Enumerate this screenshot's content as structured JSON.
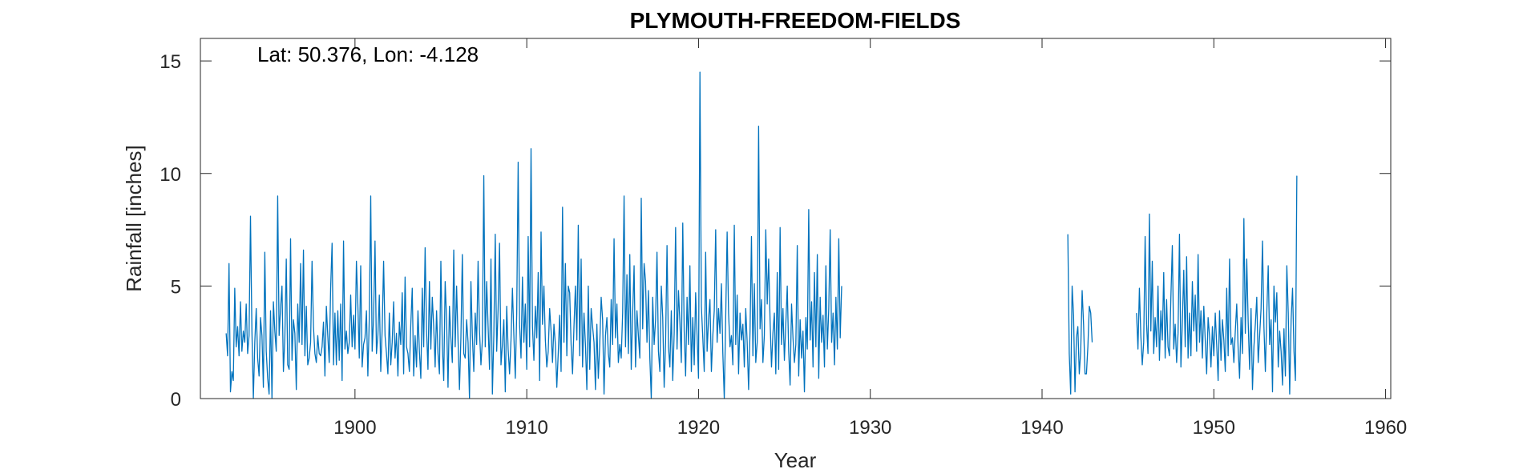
{
  "chart_data": {
    "type": "line",
    "title": "PLYMOUTH-FREEDOM-FIELDS",
    "annotation": "Lat: 50.376, Lon: -4.128",
    "xlabel": "Year",
    "ylabel": "Rainfall [inches]",
    "xlim": [
      1891,
      1960.3
    ],
    "ylim": [
      0,
      16
    ],
    "xticks": [
      1900,
      1910,
      1920,
      1930,
      1940,
      1950,
      1960
    ],
    "yticks": [
      0,
      5,
      10,
      15
    ],
    "grid": false,
    "line_color": "#0072BD",
    "series": [
      {
        "x_start": 1892.5,
        "x_step": 0.08333,
        "y": [
          2.9,
          1.9,
          6.0,
          0.3,
          1.2,
          0.8,
          4.9,
          2.3,
          3.2,
          1.9,
          4.3,
          2.1,
          3.0,
          2.5,
          4.2,
          2.0,
          2.8,
          8.1,
          3.0,
          0.0,
          2.5,
          4.0,
          1.8,
          1.0,
          3.6,
          2.8,
          0.5,
          6.5,
          2.1,
          0.9,
          0.2,
          3.9,
          0.0,
          4.3,
          3.0,
          2.1,
          9.0,
          2.8,
          4.0,
          5.0,
          1.2,
          2.7,
          6.2,
          1.5,
          1.3,
          7.1,
          1.7,
          3.5,
          2.9,
          0.4,
          4.2,
          2.5,
          6.0,
          2.4,
          6.6,
          1.9,
          4.1,
          1.5,
          1.8,
          2.5,
          6.1,
          3.2,
          2.0,
          1.6,
          2.8,
          2.0,
          1.9,
          2.3,
          3.4,
          1.0,
          4.1,
          2.8,
          1.6,
          4.9,
          6.9,
          1.5,
          3.8,
          1.5,
          3.9,
          1.7,
          4.2,
          0.8,
          7.0,
          2.2,
          3.0,
          2.0,
          2.5,
          4.6,
          2.3,
          3.7,
          2.2,
          6.1,
          4.2,
          1.8,
          5.9,
          1.4,
          2.4,
          2.7,
          3.9,
          1.0,
          3.6,
          9.0,
          2.1,
          3.6,
          7.0,
          2.0,
          2.8,
          4.6,
          1.2,
          3.1,
          6.1,
          2.8,
          2.0,
          1.1,
          3.8,
          1.5,
          2.5,
          4.3,
          1.8,
          2.9,
          1.0,
          3.4,
          2.4,
          4.7,
          1.1,
          5.4,
          2.3,
          2.0,
          1.2,
          3.3,
          4.9,
          1.0,
          2.8,
          1.4,
          3.9,
          2.1,
          0.9,
          4.9,
          2.3,
          6.7,
          3.0,
          1.3,
          5.2,
          2.2,
          4.5,
          3.2,
          1.4,
          3.9,
          2.0,
          1.1,
          6.1,
          2.4,
          0.8,
          5.2,
          3.5,
          0.5,
          4.1,
          2.7,
          1.6,
          6.6,
          2.3,
          5.0,
          2.6,
          0.4,
          2.7,
          6.4,
          2.0,
          1.8,
          3.5,
          2.5,
          0.0,
          5.2,
          2.8,
          1.2,
          3.8,
          2.4,
          6.1,
          3.0,
          1.5,
          2.6,
          9.9,
          2.3,
          5.2,
          3.2,
          1.3,
          6.2,
          0.2,
          2.8,
          7.3,
          2.1,
          4.0,
          6.9,
          1.5,
          2.4,
          3.5,
          0.3,
          4.1,
          2.2,
          1.1,
          2.6,
          4.9,
          2.8,
          0.9,
          3.8,
          10.5,
          3.3,
          1.8,
          5.4,
          2.5,
          4.2,
          1.3,
          7.2,
          2.3,
          11.1,
          3.2,
          1.7,
          4.1,
          2.7,
          5.6,
          0.8,
          7.4,
          3.3,
          5.0,
          2.6,
          1.4,
          2.1,
          4.0,
          3.0,
          1.6,
          3.3,
          2.4,
          0.5,
          2.0,
          3.7,
          1.2,
          8.5,
          2.5,
          6.0,
          1.9,
          5.0,
          4.7,
          2.4,
          1.1,
          3.2,
          5.0,
          2.6,
          7.7,
          1.9,
          6.2,
          1.4,
          3.8,
          2.4,
          0.4,
          5.0,
          1.3,
          4.0,
          3.2,
          2.5,
          0.4,
          3.3,
          0.9,
          2.4,
          4.5,
          3.5,
          0.2,
          2.8,
          3.6,
          2.0,
          1.4,
          4.4,
          2.4,
          7.1,
          2.7,
          4.2,
          1.6,
          2.4,
          1.8,
          3.8,
          9.0,
          2.3,
          5.5,
          2.0,
          6.4,
          1.3,
          3.8,
          5.9,
          1.4,
          3.9,
          2.8,
          1.8,
          8.9,
          3.1,
          6.0,
          5.2,
          2.5,
          4.8,
          1.8,
          0.0,
          4.5,
          2.4,
          3.5,
          6.5,
          2.1,
          1.2,
          5.0,
          3.6,
          0.5,
          2.5,
          6.8,
          2.3,
          1.4,
          3.9,
          0.8,
          2.9,
          7.6,
          2.2,
          4.8,
          3.4,
          1.6,
          7.8,
          3.0,
          1.0,
          4.5,
          2.4,
          5.9,
          1.2,
          3.6,
          1.5,
          4.7,
          2.8,
          0.9,
          14.5,
          4.1,
          2.7,
          1.2,
          6.5,
          2.1,
          3.5,
          4.4,
          1.2,
          2.8,
          3.9,
          7.5,
          2.5,
          4.0,
          2.9,
          5.1,
          2.0,
          0.0,
          3.6,
          7.4,
          3.8,
          2.3,
          2.8,
          1.5,
          7.7,
          2.4,
          4.6,
          1.1,
          3.8,
          2.6,
          3.3,
          1.4,
          4.0,
          2.5,
          0.4,
          3.0,
          7.2,
          1.9,
          5.1,
          1.6,
          2.5,
          12.1,
          3.1,
          4.4,
          1.6,
          2.8,
          7.5,
          4.2,
          6.2,
          3.5,
          1.4,
          2.9,
          3.8,
          1.1,
          5.6,
          1.3,
          7.6,
          2.4,
          4.0,
          1.7,
          3.3,
          5.0,
          2.1,
          0.6,
          4.2,
          2.7,
          1.6,
          2.4,
          6.8,
          1.0,
          3.5,
          1.8,
          3.0,
          0.3,
          3.6,
          2.2,
          8.4,
          2.6,
          4.3,
          1.4,
          5.6,
          2.3,
          6.4,
          0.9,
          4.5,
          2.5,
          3.7,
          1.4,
          5.9,
          2.2,
          4.0,
          7.5,
          2.5,
          3.8,
          1.5,
          4.5,
          2.2,
          7.1,
          2.7,
          5.0
        ],
        "gap_after_index": 576
      },
      {
        "x_start": 1941.5,
        "x_step": 0.08333,
        "y": [
          7.3,
          2.0,
          0.2,
          5.0,
          3.7,
          0.3,
          2.7,
          3.2,
          1.1,
          2.1,
          4.8,
          3.3,
          1.1,
          1.1,
          2.3,
          4.1,
          3.8,
          2.5
        ]
      },
      {
        "x_start": 1945.5,
        "x_step": 0.08333,
        "y": [
          3.8,
          2.2,
          4.9,
          2.8,
          1.5,
          2.5,
          7.2,
          3.3,
          2.0,
          8.2,
          3.0,
          6.1,
          2.0,
          3.6,
          2.3,
          5.0,
          1.7,
          3.9,
          2.6,
          5.6,
          1.8,
          4.4,
          2.3,
          1.9,
          4.5,
          6.8,
          2.2,
          3.3,
          1.6,
          2.9,
          7.3,
          1.4,
          3.4,
          5.7,
          2.3,
          6.3,
          1.8,
          3.8,
          1.9,
          5.2,
          3.0,
          4.6,
          2.1,
          6.4,
          2.5,
          3.9,
          1.8,
          4.1,
          2.6,
          1.1,
          3.6,
          2.8,
          1.4,
          3.2,
          1.9,
          3.8,
          2.4,
          0.8,
          3.9,
          1.7,
          3.5,
          2.6,
          1.2,
          4.9,
          1.9,
          6.2,
          2.4,
          2.7,
          1.6,
          3.0,
          4.2,
          2.2,
          0.9,
          3.6,
          2.0,
          8.0,
          2.9,
          6.2,
          3.4,
          1.3,
          4.0,
          0.4,
          2.3,
          3.3,
          4.5,
          1.6,
          2.8,
          4.0,
          7.0,
          3.2,
          1.2,
          3.8,
          5.9,
          2.4,
          3.5,
          0.3,
          5.0,
          3.4,
          4.7,
          1.4,
          3.0,
          2.1,
          0.6,
          3.1,
          1.0,
          5.9,
          3.8,
          0.2,
          3.5,
          4.9,
          2.1,
          0.8,
          9.9
        ]
      }
    ]
  }
}
